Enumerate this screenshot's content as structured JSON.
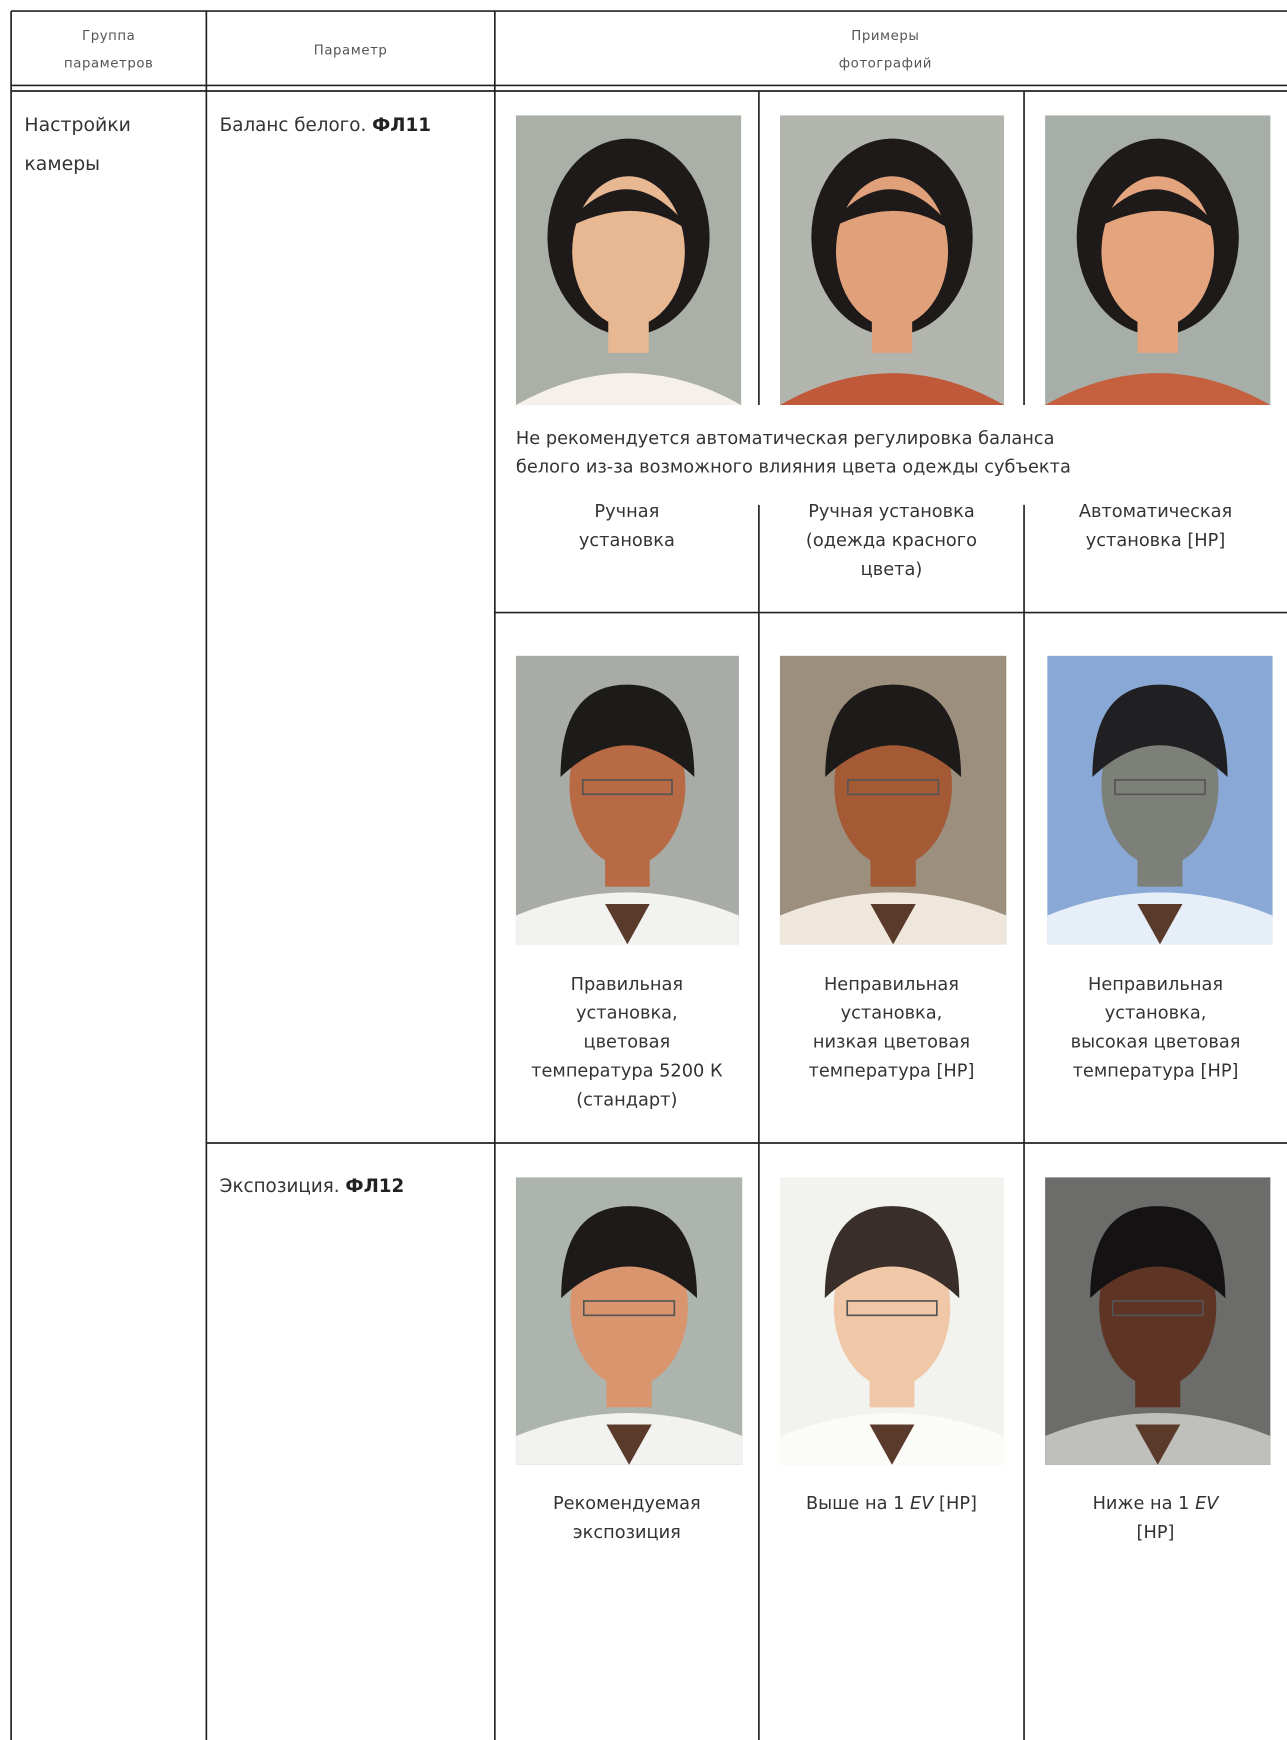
{
  "header": {
    "group": "Группа\nпараметров",
    "parameter": "Параметр",
    "examples": "Примеры\nфотографий"
  },
  "group": "Настройки\nкамеры",
  "parameters": [
    {
      "name": "Баланс белого.",
      "code": "ФЛ11",
      "note": "Не рекомендуется автоматическая регулировка баланса\nбелого из-за возможного влияния цвета одежды субъекта",
      "captions": [
        "Ручная\nустановка",
        "Ручная установка\n(одежда красного\nцвета)",
        "Автоматическая\nустановка [НР]"
      ],
      "captions_2": [
        "Правильная\nустановка,\nцветовая\nтемпература 5200 К\n(стандарт)",
        "Неправильная\nустановка,\nнизкая цветовая\nтемпература [НР]",
        "Неправильная\nустановка,\nвысокая цветовая\nтемпература [НР]"
      ]
    },
    {
      "name": "Экспозиция.",
      "code": "ФЛ12",
      "captions": [
        {
          "text": "Рекомендуемая\nэкспозиция"
        },
        {
          "prefix": "Выше на 1 ",
          "emphasis": "EV",
          "suffix": " [НР]"
        },
        {
          "prefix": "Ниже на 1 ",
          "emphasis": "EV",
          "suffix": "\n[НР]"
        }
      ]
    }
  ]
}
